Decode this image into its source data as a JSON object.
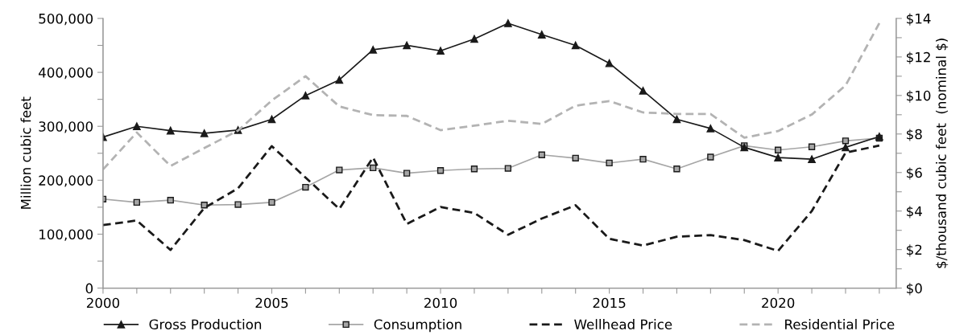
{
  "chart_data": {
    "type": "line",
    "ylabel": "Million cubic feet",
    "y2label": "$/thousand cubic feet  (nominal $)",
    "x": [
      2000,
      2001,
      2002,
      2003,
      2004,
      2005,
      2006,
      2007,
      2008,
      2009,
      2010,
      2011,
      2012,
      2013,
      2014,
      2015,
      2016,
      2017,
      2018,
      2019,
      2020,
      2021,
      2022,
      2023
    ],
    "series": [
      {
        "name": "Gross Production",
        "color": "#1a1a1a",
        "marker": "triangle",
        "line_style": "solid",
        "values": [
          280000,
          300000,
          292000,
          287000,
          293000,
          313000,
          357000,
          386000,
          442000,
          450000,
          440000,
          462000,
          491000,
          470000,
          450000,
          417000,
          366000,
          313000,
          296000,
          261000,
          242000,
          239000,
          261000,
          281000
        ]
      },
      {
        "name": "Consumption",
        "color": "#a6a6a6",
        "marker": "square",
        "line_style": "solid",
        "values": [
          165000,
          159000,
          163000,
          154000,
          155000,
          159000,
          187000,
          219000,
          223000,
          213000,
          218000,
          221000,
          222000,
          247000,
          241000,
          232000,
          239000,
          221000,
          243000,
          264000,
          256000,
          262000,
          273000,
          278000
        ]
      },
      {
        "name": "Wellhead Price",
        "color": "#1a1a1a",
        "marker": "none",
        "line_style": "dashed",
        "axis": "y2",
        "values": [
          3.27,
          3.51,
          1.98,
          4.16,
          5.18,
          7.37,
          5.74,
          4.11,
          6.78,
          3.33,
          4.21,
          3.9,
          2.77,
          3.61,
          4.3,
          2.56,
          2.21,
          2.67,
          2.75,
          2.49,
          1.93,
          4.0,
          7.03,
          7.4
        ]
      },
      {
        "name": "Residential Price",
        "color": "#b3b3b3",
        "marker": "none",
        "line_style": "dashed",
        "axis": "y2",
        "values": [
          6.16,
          8.08,
          6.34,
          7.27,
          8.18,
          9.74,
          11.0,
          9.43,
          8.98,
          8.94,
          8.2,
          8.43,
          8.69,
          8.52,
          9.47,
          9.71,
          9.12,
          9.04,
          9.04,
          7.81,
          8.15,
          9.01,
          10.52,
          13.75
        ]
      }
    ],
    "xlim": [
      2000,
      2023.5
    ],
    "xticks": [
      2000,
      {
        "value": 2001,
        "label": null
      },
      {
        "value": 2002,
        "label": null
      },
      {
        "value": 2003,
        "label": null
      },
      {
        "value": 2004,
        "label": null
      },
      2005,
      {
        "value": 2006,
        "label": null
      },
      {
        "value": 2007,
        "label": null
      },
      {
        "value": 2008,
        "label": null
      },
      {
        "value": 2009,
        "label": null
      },
      2010,
      {
        "value": 2011,
        "label": null
      },
      {
        "value": 2012,
        "label": null
      },
      {
        "value": 2013,
        "label": null
      },
      {
        "value": 2014,
        "label": null
      },
      2015,
      {
        "value": 2016,
        "label": null
      },
      {
        "value": 2017,
        "label": null
      },
      {
        "value": 2018,
        "label": null
      },
      {
        "value": 2019,
        "label": null
      },
      2020,
      {
        "value": 2021,
        "label": null
      },
      {
        "value": 2022,
        "label": null
      },
      {
        "value": 2023,
        "label": null
      }
    ],
    "ylim": [
      0,
      500000
    ],
    "yticks": [
      0,
      {
        "value": 50000,
        "label": null
      },
      {
        "value": 100000,
        "label": "100,000"
      },
      {
        "value": 150000,
        "label": null
      },
      {
        "value": 200000,
        "label": "200,000"
      },
      {
        "value": 250000,
        "label": null
      },
      {
        "value": 300000,
        "label": "300,000"
      },
      {
        "value": 350000,
        "label": null
      },
      {
        "value": 400000,
        "label": "400,000"
      },
      {
        "value": 450000,
        "label": null
      },
      {
        "value": 500000,
        "label": "500,000"
      }
    ],
    "y2lim": [
      0,
      14
    ],
    "y2ticks": [
      {
        "value": 0,
        "label": "$0"
      },
      {
        "value": 1,
        "label": null
      },
      {
        "value": 2,
        "label": "$2"
      },
      {
        "value": 3,
        "label": null
      },
      {
        "value": 4,
        "label": "$4"
      },
      {
        "value": 5,
        "label": null
      },
      {
        "value": 6,
        "label": "$6"
      },
      {
        "value": 7,
        "label": null
      },
      {
        "value": 8,
        "label": "$8"
      },
      {
        "value": 9,
        "label": null
      },
      {
        "value": 10,
        "label": "$10"
      },
      {
        "value": 11,
        "label": null
      },
      {
        "value": 12,
        "label": "$12"
      },
      {
        "value": 13,
        "label": null
      },
      {
        "value": 14,
        "label": "$14"
      }
    ],
    "grid": false,
    "legend": "bottom"
  }
}
